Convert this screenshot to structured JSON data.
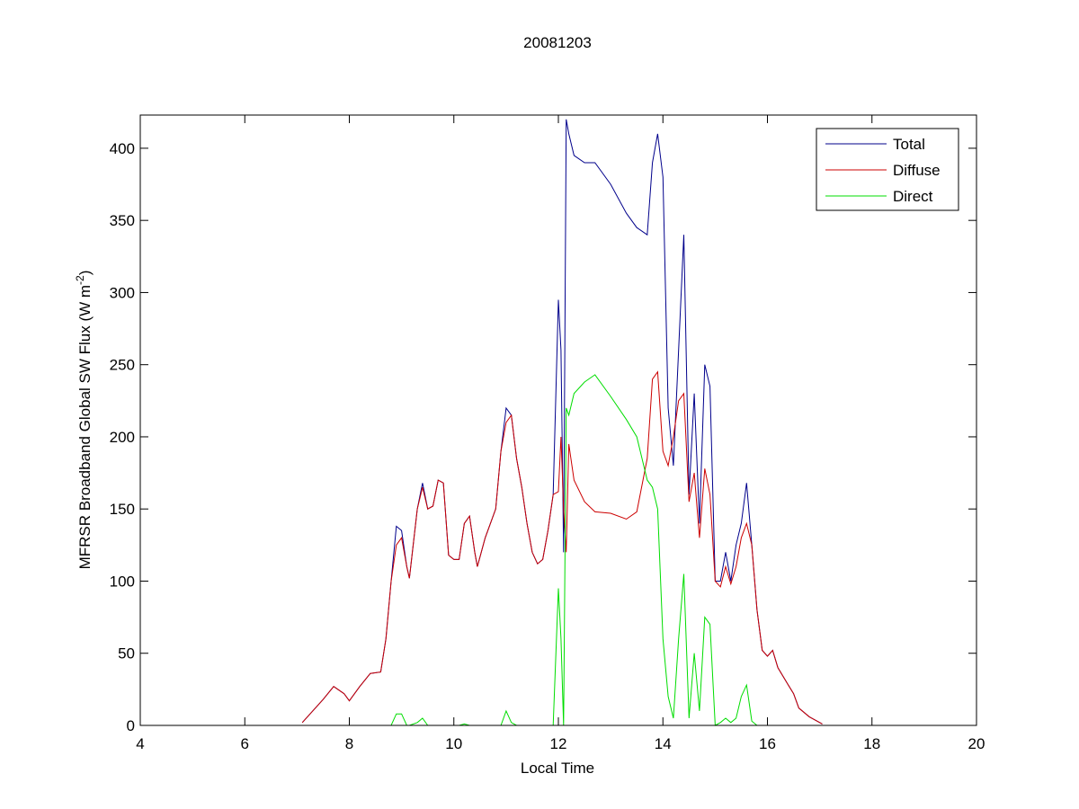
{
  "chart_data": {
    "type": "line",
    "title": "20081203",
    "xlabel": "Local Time",
    "ylabel": {
      "text": "MFRSR Broadband Global SW Flux (W m",
      "superscript": "-2",
      "suffix": ")"
    },
    "xlim": [
      4,
      20
    ],
    "ylim": [
      0,
      423
    ],
    "xticks": [
      4,
      6,
      8,
      10,
      12,
      14,
      16,
      18,
      20
    ],
    "yticks": [
      0,
      50,
      100,
      150,
      200,
      250,
      300,
      350,
      400
    ],
    "legend": "upper right",
    "x": [
      7.1,
      7.3,
      7.5,
      7.7,
      7.9,
      8.0,
      8.2,
      8.4,
      8.6,
      8.7,
      8.8,
      8.9,
      9.0,
      9.1,
      9.15,
      9.3,
      9.4,
      9.5,
      9.6,
      9.7,
      9.8,
      9.9,
      10.0,
      10.1,
      10.2,
      10.3,
      10.4,
      10.45,
      10.6,
      10.8,
      10.9,
      11.0,
      11.1,
      11.2,
      11.3,
      11.4,
      11.5,
      11.6,
      11.7,
      11.8,
      11.9,
      12.0,
      12.05,
      12.1,
      12.15,
      12.2,
      12.3,
      12.5,
      12.7,
      13.0,
      13.3,
      13.5,
      13.7,
      13.8,
      13.9,
      14.0,
      14.1,
      14.2,
      14.3,
      14.4,
      14.5,
      14.6,
      14.7,
      14.8,
      14.9,
      15.0,
      15.1,
      15.2,
      15.3,
      15.4,
      15.5,
      15.6,
      15.7,
      15.8,
      15.9,
      16.0,
      16.1,
      16.2,
      16.4,
      16.5,
      16.6,
      16.8,
      17.0,
      17.05
    ],
    "series": [
      {
        "name": "Total",
        "color": "#00008b",
        "values": [
          2,
          10,
          18,
          27,
          22,
          17,
          27,
          36,
          37,
          60,
          100,
          138,
          135,
          110,
          102,
          150,
          168,
          150,
          152,
          170,
          168,
          118,
          115,
          115,
          140,
          145,
          120,
          110,
          130,
          150,
          190,
          220,
          215,
          185,
          165,
          140,
          120,
          112,
          115,
          135,
          160,
          295,
          260,
          120,
          420,
          410,
          395,
          390,
          390,
          375,
          355,
          345,
          340,
          390,
          410,
          380,
          220,
          180,
          260,
          340,
          160,
          230,
          140,
          250,
          235,
          100,
          100,
          120,
          100,
          125,
          140,
          168,
          125,
          80,
          52,
          48,
          52,
          40,
          28,
          22,
          12,
          6,
          2,
          1
        ]
      },
      {
        "name": "Diffuse",
        "color": "#cc0000",
        "values": [
          2,
          10,
          18,
          27,
          22,
          17,
          27,
          36,
          37,
          60,
          100,
          125,
          130,
          110,
          102,
          150,
          165,
          150,
          152,
          170,
          168,
          118,
          115,
          115,
          140,
          145,
          120,
          110,
          130,
          150,
          190,
          210,
          215,
          185,
          165,
          140,
          120,
          112,
          115,
          135,
          160,
          162,
          200,
          150,
          120,
          195,
          170,
          155,
          148,
          147,
          143,
          148,
          185,
          240,
          245,
          190,
          180,
          200,
          225,
          230,
          155,
          175,
          130,
          178,
          160,
          100,
          96,
          110,
          98,
          110,
          130,
          140,
          125,
          80,
          52,
          48,
          52,
          40,
          28,
          22,
          12,
          6,
          2,
          1
        ]
      },
      {
        "name": "Direct",
        "color": "#00dd00",
        "values": [
          0,
          0,
          0,
          0,
          0,
          0,
          0,
          0,
          0,
          0,
          0,
          8,
          8,
          0,
          0,
          2,
          5,
          0,
          0,
          0,
          0,
          0,
          0,
          0,
          1,
          0,
          0,
          0,
          0,
          0,
          0,
          10,
          2,
          0,
          0,
          0,
          0,
          0,
          0,
          0,
          0,
          95,
          60,
          0,
          220,
          215,
          230,
          238,
          243,
          228,
          212,
          200,
          170,
          165,
          150,
          60,
          20,
          5,
          60,
          105,
          5,
          50,
          10,
          75,
          70,
          0,
          2,
          5,
          2,
          5,
          20,
          28,
          3,
          0,
          0,
          0,
          0,
          0,
          0,
          0,
          0,
          0,
          0,
          0
        ]
      }
    ]
  }
}
